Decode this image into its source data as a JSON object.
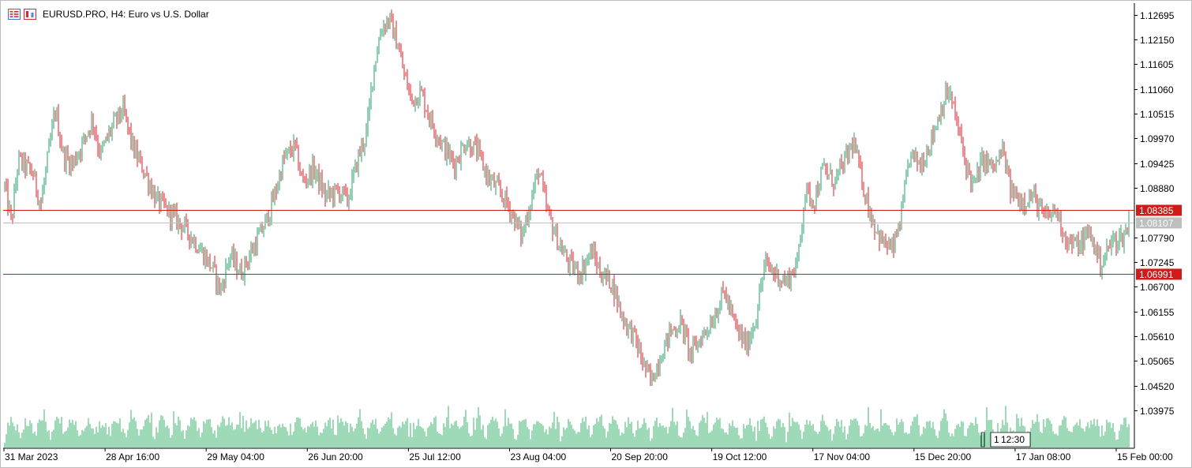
{
  "window": {
    "title": "EURUSD.PRO, H4:  Euro vs U.S. Dollar",
    "toolbar_icons": [
      "indicators-list-icon",
      "chart-properties-icon"
    ]
  },
  "time_readout": "12:30",
  "time_readout_prefix": "1",
  "colors": {
    "bull": "#26a269",
    "bear": "#e01b24",
    "volume": "#3cb371",
    "level_line": "#d11a1a",
    "bid_line": "#bfbfbf",
    "axis_text": "#000000"
  },
  "chart_data": {
    "type": "candlestick",
    "symbol": "EURUSD.PRO",
    "timeframe": "H4",
    "title": "Euro vs U.S. Dollar",
    "ylim": [
      1.0415,
      1.1295
    ],
    "y_ticks": [
      "1.12695",
      "1.12150",
      "1.11605",
      "1.11060",
      "1.10515",
      "1.09970",
      "1.09425",
      "1.08880",
      "1.07790",
      "1.07245",
      "1.06700",
      "1.06155",
      "1.05610",
      "1.05065",
      "1.04520",
      "1.03975"
    ],
    "x_ticks": [
      "31 Mar 2023",
      "28 Apr 16:00",
      "29 May 04:00",
      "26 Jun 20:00",
      "25 Jul 12:00",
      "23 Aug 04:00",
      "20 Sep 20:00",
      "19 Oct 12:00",
      "17 Nov 04:00",
      "15 Dec 20:00",
      "17 Jan 08:00",
      "15 Feb 00:00"
    ],
    "horizontal_levels": [
      {
        "label": "1.08385",
        "value": 1.08385,
        "style": "level"
      },
      {
        "label": "1.06991",
        "value": 1.06991,
        "style": "level"
      },
      {
        "label": "1.08107",
        "value": 1.08107,
        "style": "bid"
      }
    ],
    "price_path": [
      {
        "t": 0.0,
        "p": 1.089
      },
      {
        "t": 0.006,
        "p": 1.081
      },
      {
        "t": 0.012,
        "p": 1.095
      },
      {
        "t": 0.025,
        "p": 1.092
      },
      {
        "t": 0.032,
        "p": 1.085
      },
      {
        "t": 0.04,
        "p": 1.098
      },
      {
        "t": 0.045,
        "p": 1.106
      },
      {
        "t": 0.052,
        "p": 1.096
      },
      {
        "t": 0.06,
        "p": 1.094
      },
      {
        "t": 0.07,
        "p": 1.099
      },
      {
        "t": 0.078,
        "p": 1.104
      },
      {
        "t": 0.085,
        "p": 1.096
      },
      {
        "t": 0.095,
        "p": 1.102
      },
      {
        "t": 0.105,
        "p": 1.106
      },
      {
        "t": 0.115,
        "p": 1.097
      },
      {
        "t": 0.125,
        "p": 1.092
      },
      {
        "t": 0.135,
        "p": 1.086
      },
      {
        "t": 0.148,
        "p": 1.083
      },
      {
        "t": 0.16,
        "p": 1.08
      },
      {
        "t": 0.172,
        "p": 1.076
      },
      {
        "t": 0.185,
        "p": 1.071
      },
      {
        "t": 0.192,
        "p": 1.066
      },
      {
        "t": 0.2,
        "p": 1.074
      },
      {
        "t": 0.21,
        "p": 1.07
      },
      {
        "t": 0.222,
        "p": 1.076
      },
      {
        "t": 0.232,
        "p": 1.081
      },
      {
        "t": 0.24,
        "p": 1.087
      },
      {
        "t": 0.248,
        "p": 1.095
      },
      {
        "t": 0.258,
        "p": 1.098
      },
      {
        "t": 0.265,
        "p": 1.09
      },
      {
        "t": 0.275,
        "p": 1.093
      },
      {
        "t": 0.285,
        "p": 1.087
      },
      {
        "t": 0.298,
        "p": 1.088
      },
      {
        "t": 0.305,
        "p": 1.086
      },
      {
        "t": 0.315,
        "p": 1.096
      },
      {
        "t": 0.322,
        "p": 1.101
      },
      {
        "t": 0.328,
        "p": 1.115
      },
      {
        "t": 0.335,
        "p": 1.124
      },
      {
        "t": 0.342,
        "p": 1.126
      },
      {
        "t": 0.35,
        "p": 1.12
      },
      {
        "t": 0.355,
        "p": 1.114
      },
      {
        "t": 0.362,
        "p": 1.108
      },
      {
        "t": 0.37,
        "p": 1.11
      },
      {
        "t": 0.38,
        "p": 1.103
      },
      {
        "t": 0.39,
        "p": 1.098
      },
      {
        "t": 0.4,
        "p": 1.094
      },
      {
        "t": 0.41,
        "p": 1.099
      },
      {
        "t": 0.42,
        "p": 1.097
      },
      {
        "t": 0.43,
        "p": 1.091
      },
      {
        "t": 0.44,
        "p": 1.088
      },
      {
        "t": 0.45,
        "p": 1.084
      },
      {
        "t": 0.46,
        "p": 1.078
      },
      {
        "t": 0.468,
        "p": 1.086
      },
      {
        "t": 0.475,
        "p": 1.093
      },
      {
        "t": 0.482,
        "p": 1.084
      },
      {
        "t": 0.492,
        "p": 1.077
      },
      {
        "t": 0.502,
        "p": 1.072
      },
      {
        "t": 0.512,
        "p": 1.07
      },
      {
        "t": 0.522,
        "p": 1.075
      },
      {
        "t": 0.53,
        "p": 1.07
      },
      {
        "t": 0.54,
        "p": 1.068
      },
      {
        "t": 0.55,
        "p": 1.06
      },
      {
        "t": 0.56,
        "p": 1.056
      },
      {
        "t": 0.568,
        "p": 1.05
      },
      {
        "t": 0.575,
        "p": 1.046
      },
      {
        "t": 0.582,
        "p": 1.051
      },
      {
        "t": 0.592,
        "p": 1.057
      },
      {
        "t": 0.602,
        "p": 1.059
      },
      {
        "t": 0.61,
        "p": 1.052
      },
      {
        "t": 0.62,
        "p": 1.056
      },
      {
        "t": 0.63,
        "p": 1.06
      },
      {
        "t": 0.64,
        "p": 1.066
      },
      {
        "t": 0.65,
        "p": 1.058
      },
      {
        "t": 0.66,
        "p": 1.054
      },
      {
        "t": 0.668,
        "p": 1.06
      },
      {
        "t": 0.676,
        "p": 1.072
      },
      {
        "t": 0.685,
        "p": 1.07
      },
      {
        "t": 0.695,
        "p": 1.068
      },
      {
        "t": 0.705,
        "p": 1.072
      },
      {
        "t": 0.712,
        "p": 1.088
      },
      {
        "t": 0.72,
        "p": 1.086
      },
      {
        "t": 0.728,
        "p": 1.093
      },
      {
        "t": 0.738,
        "p": 1.09
      },
      {
        "t": 0.748,
        "p": 1.095
      },
      {
        "t": 0.755,
        "p": 1.099
      },
      {
        "t": 0.762,
        "p": 1.091
      },
      {
        "t": 0.77,
        "p": 1.083
      },
      {
        "t": 0.78,
        "p": 1.077
      },
      {
        "t": 0.79,
        "p": 1.075
      },
      {
        "t": 0.798,
        "p": 1.083
      },
      {
        "t": 0.805,
        "p": 1.096
      },
      {
        "t": 0.815,
        "p": 1.094
      },
      {
        "t": 0.825,
        "p": 1.1
      },
      {
        "t": 0.835,
        "p": 1.108
      },
      {
        "t": 0.84,
        "p": 1.11
      },
      {
        "t": 0.848,
        "p": 1.102
      },
      {
        "t": 0.855,
        "p": 1.094
      },
      {
        "t": 0.862,
        "p": 1.089
      },
      {
        "t": 0.87,
        "p": 1.095
      },
      {
        "t": 0.88,
        "p": 1.093
      },
      {
        "t": 0.888,
        "p": 1.097
      },
      {
        "t": 0.895,
        "p": 1.088
      },
      {
        "t": 0.905,
        "p": 1.086
      },
      {
        "t": 0.915,
        "p": 1.087
      },
      {
        "t": 0.925,
        "p": 1.082
      },
      {
        "t": 0.935,
        "p": 1.084
      },
      {
        "t": 0.945,
        "p": 1.077
      },
      {
        "t": 0.955,
        "p": 1.076
      },
      {
        "t": 0.965,
        "p": 1.079
      },
      {
        "t": 0.975,
        "p": 1.072
      },
      {
        "t": 0.985,
        "p": 1.077
      },
      {
        "t": 0.995,
        "p": 1.078
      },
      {
        "t": 1.0,
        "p": 1.081
      }
    ]
  }
}
